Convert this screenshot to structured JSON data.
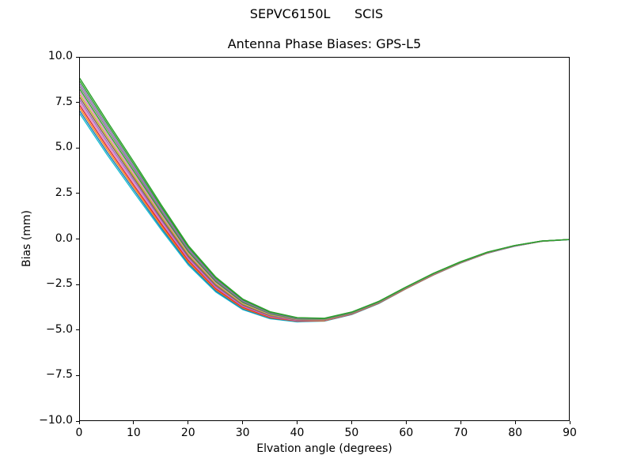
{
  "figure": {
    "suptitle": "SEPVC6150L      SCIS",
    "background_color": "#ffffff",
    "axes_edge_color": "#000000"
  },
  "chart_data": {
    "type": "line",
    "title": "Antenna Phase Biases: GPS-L5",
    "xlabel": "Elvation angle (degrees)",
    "ylabel": "Bias (mm)",
    "xlim": [
      0,
      90
    ],
    "ylim": [
      -10.0,
      10.0
    ],
    "grid": false,
    "legend_position": "none",
    "x_ticks": {
      "values": [
        0,
        10,
        20,
        30,
        40,
        50,
        60,
        70,
        80,
        90
      ],
      "labels": [
        "0",
        "10",
        "20",
        "30",
        "40",
        "50",
        "60",
        "70",
        "80",
        "90"
      ]
    },
    "y_ticks": {
      "values": [
        10.0,
        7.5,
        5.0,
        2.5,
        0.0,
        -2.5,
        -5.0,
        -7.5,
        -10.0
      ],
      "labels": [
        "10.0",
        "7.5",
        "5.0",
        "2.5",
        "0.0",
        "−2.5",
        "−5.0",
        "−7.5",
        "−10.0"
      ]
    },
    "x": [
      0,
      5,
      10,
      15,
      20,
      25,
      30,
      35,
      40,
      45,
      50,
      55,
      60,
      65,
      70,
      75,
      80,
      85,
      90
    ],
    "series": [
      {
        "color": "#17becf",
        "values": [
          6.9,
          4.65,
          2.55,
          0.5,
          -1.45,
          -2.92,
          -3.9,
          -4.4,
          -4.57,
          -4.53,
          -4.17,
          -3.56,
          -2.75,
          -2.0,
          -1.34,
          -0.78,
          -0.4,
          -0.13,
          -0.04
        ]
      },
      {
        "color": "#1f77b4",
        "values": [
          7.05,
          4.79,
          2.68,
          0.6,
          -1.37,
          -2.86,
          -3.86,
          -4.37,
          -4.55,
          -4.52,
          -4.16,
          -3.55,
          -2.74,
          -1.99,
          -1.33,
          -0.78,
          -0.4,
          -0.13,
          -0.03
        ]
      },
      {
        "color": "#ff7f0e",
        "values": [
          7.2,
          4.94,
          2.81,
          0.71,
          -1.29,
          -2.79,
          -3.81,
          -4.34,
          -4.53,
          -4.51,
          -4.15,
          -3.54,
          -2.74,
          -1.99,
          -1.33,
          -0.77,
          -0.39,
          -0.13,
          -0.03
        ]
      },
      {
        "color": "#d62728",
        "values": [
          7.35,
          5.08,
          2.93,
          0.82,
          -1.2,
          -2.73,
          -3.77,
          -4.31,
          -4.52,
          -4.49,
          -4.14,
          -3.53,
          -2.73,
          -1.98,
          -1.32,
          -0.77,
          -0.39,
          -0.13,
          -0.03
        ]
      },
      {
        "color": "#e377c2",
        "values": [
          7.5,
          5.22,
          3.06,
          0.92,
          -1.12,
          -2.67,
          -3.72,
          -4.28,
          -4.5,
          -4.48,
          -4.13,
          -3.52,
          -2.72,
          -1.97,
          -1.32,
          -0.76,
          -0.39,
          -0.12,
          -0.03
        ]
      },
      {
        "color": "#9467bd",
        "values": [
          7.65,
          5.36,
          3.19,
          1.03,
          -1.04,
          -2.61,
          -3.68,
          -4.25,
          -4.48,
          -4.47,
          -4.12,
          -3.52,
          -2.71,
          -1.96,
          -1.31,
          -0.76,
          -0.39,
          -0.12,
          -0.03
        ]
      },
      {
        "color": "#8c564b",
        "values": [
          7.8,
          5.51,
          3.32,
          1.13,
          -0.96,
          -2.54,
          -3.63,
          -4.22,
          -4.46,
          -4.46,
          -4.11,
          -3.51,
          -2.71,
          -1.96,
          -1.3,
          -0.75,
          -0.38,
          -0.12,
          -0.03
        ]
      },
      {
        "color": "#bcbd22",
        "values": [
          7.95,
          5.65,
          3.44,
          1.24,
          -0.87,
          -2.48,
          -3.59,
          -4.19,
          -4.44,
          -4.45,
          -4.1,
          -3.5,
          -2.7,
          -1.95,
          -1.3,
          -0.75,
          -0.38,
          -0.12,
          -0.03
        ]
      },
      {
        "color": "#e377c2",
        "values": [
          8.1,
          5.79,
          3.57,
          1.34,
          -0.79,
          -2.42,
          -3.54,
          -4.16,
          -4.43,
          -4.43,
          -4.09,
          -3.49,
          -2.69,
          -1.94,
          -1.29,
          -0.74,
          -0.38,
          -0.12,
          -0.03
        ]
      },
      {
        "color": "#2ca02c",
        "values": [
          8.25,
          5.93,
          3.7,
          1.45,
          -0.71,
          -2.35,
          -3.5,
          -4.13,
          -4.41,
          -4.42,
          -4.08,
          -3.48,
          -2.68,
          -1.93,
          -1.29,
          -0.74,
          -0.37,
          -0.12,
          -0.03
        ]
      },
      {
        "color": "#7f7f7f",
        "values": [
          8.4,
          6.08,
          3.83,
          1.55,
          -0.63,
          -2.29,
          -3.45,
          -4.1,
          -4.39,
          -4.41,
          -4.07,
          -3.47,
          -2.68,
          -1.93,
          -1.28,
          -0.74,
          -0.37,
          -0.12,
          -0.03
        ]
      },
      {
        "color": "#9467bd",
        "values": [
          8.55,
          6.22,
          3.95,
          1.66,
          -0.54,
          -2.23,
          -3.41,
          -4.07,
          -4.37,
          -4.4,
          -4.05,
          -3.46,
          -2.67,
          -1.92,
          -1.27,
          -0.73,
          -0.37,
          -0.11,
          -0.03
        ]
      },
      {
        "color": "#2ca02c",
        "values": [
          8.7,
          6.36,
          4.08,
          1.76,
          -0.46,
          -2.16,
          -3.36,
          -4.04,
          -4.35,
          -4.39,
          -4.04,
          -3.45,
          -2.66,
          -1.91,
          -1.27,
          -0.73,
          -0.36,
          -0.11,
          -0.03
        ]
      },
      {
        "color": "#2ca02c",
        "values": [
          8.85,
          6.5,
          4.21,
          1.87,
          -0.38,
          -2.1,
          -3.32,
          -4.01,
          -4.34,
          -4.37,
          -4.03,
          -3.44,
          -2.65,
          -1.9,
          -1.26,
          -0.72,
          -0.36,
          -0.11,
          -0.03
        ]
      }
    ]
  }
}
